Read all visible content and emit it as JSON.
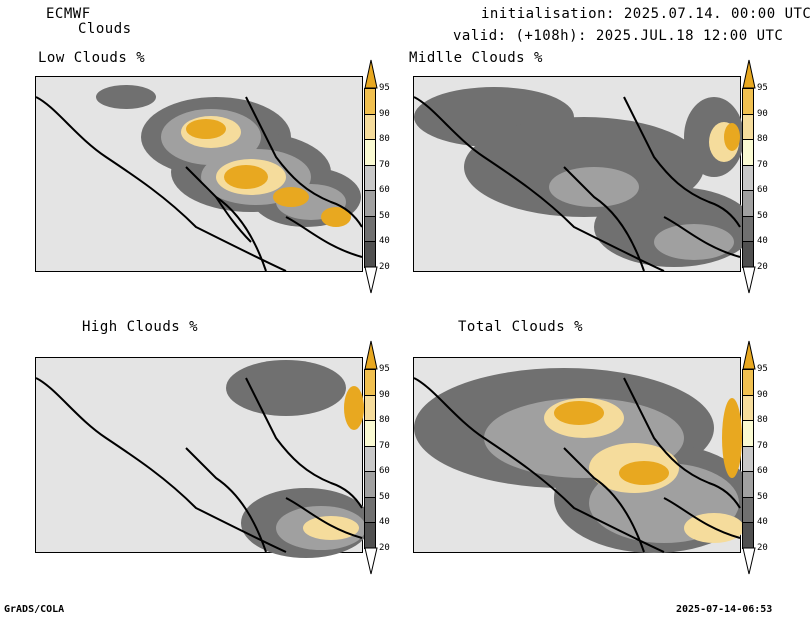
{
  "header": {
    "model": "ECMWF",
    "product": "Clouds",
    "init": "initialisation: 2025.07.14. 00:00 UTC",
    "valid": "valid: (+108h): 2025.JUL.18 12:00 UTC"
  },
  "panels": {
    "low": "Low Clouds %",
    "mid": "Midlle Clouds %",
    "high": "High Clouds %",
    "total": "Total Clouds %"
  },
  "legend": {
    "ticks": [
      "95",
      "90",
      "80",
      "70",
      "60",
      "50",
      "40",
      "20"
    ],
    "colors": {
      "c95": "#e8a820",
      "c90": "#f0c050",
      "c80": "#f5dc9c",
      "c70": "#fafad2",
      "c60": "#c8c8c8",
      "c50": "#a0a0a0",
      "c40": "#707070",
      "c20": "#505050",
      "background": "#e4e4e4"
    }
  },
  "footer": {
    "left": "GrADS/COLA",
    "right": "2025-07-14-06:53"
  }
}
